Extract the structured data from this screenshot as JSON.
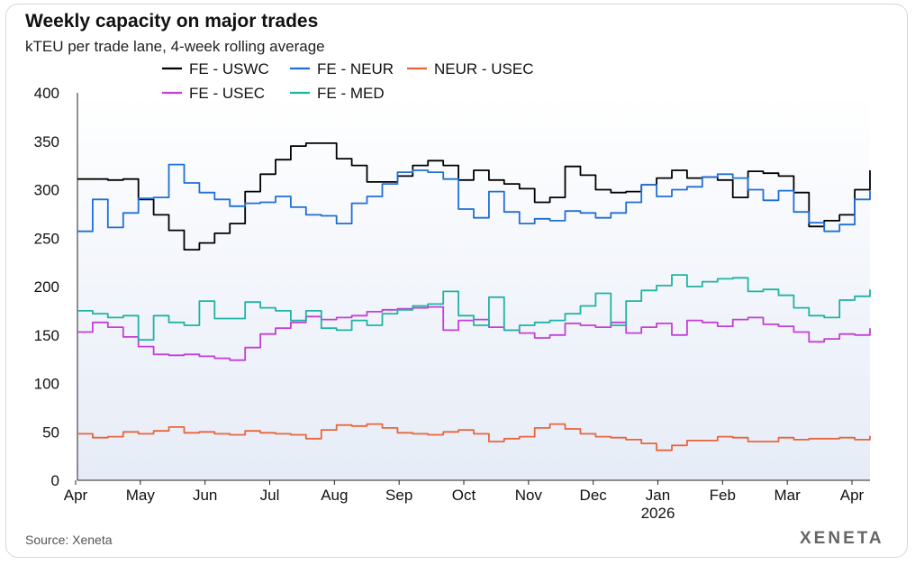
{
  "chart_data": {
    "type": "line",
    "title": "Weekly capacity on major trades",
    "subtitle": "kTEU per trade lane, 4-week rolling average",
    "source": "Source: Xeneta",
    "logo": "XENETA",
    "xlabel": "",
    "ylabel": "",
    "ylim": [
      0,
      400
    ],
    "y_ticks": [
      0,
      50,
      100,
      150,
      200,
      250,
      300,
      350,
      400
    ],
    "x_tick_labels": [
      "Apr",
      "May",
      "Jun",
      "Jul",
      "Aug",
      "Sep",
      "Oct",
      "Nov",
      "Dec",
      "Jan",
      "Feb",
      "Mar",
      "Apr"
    ],
    "x_year_label": "2026",
    "x_weeks": 53,
    "grid": false,
    "legend_position": "top-left",
    "series": [
      {
        "name": "FE - USWC",
        "color": "#000000",
        "values": [
          311,
          311,
          310,
          311,
          290,
          274,
          258,
          238,
          245,
          255,
          265,
          298,
          316,
          331,
          345,
          348,
          348,
          332,
          325,
          308,
          308,
          314,
          325,
          330,
          325,
          310,
          320,
          310,
          306,
          301,
          287,
          292,
          324,
          315,
          300,
          297,
          298,
          305,
          312,
          320,
          312,
          313,
          310,
          292,
          319,
          317,
          314,
          297,
          262,
          268,
          274,
          300,
          320
        ]
      },
      {
        "name": "FE - NEUR",
        "color": "#1f6fd6",
        "values": [
          257,
          290,
          261,
          276,
          291,
          292,
          326,
          307,
          297,
          290,
          283,
          286,
          287,
          293,
          282,
          274,
          273,
          265,
          286,
          293,
          306,
          318,
          320,
          318,
          311,
          280,
          271,
          298,
          277,
          265,
          270,
          268,
          278,
          276,
          271,
          276,
          287,
          305,
          293,
          300,
          303,
          313,
          316,
          312,
          300,
          289,
          299,
          277,
          266,
          257,
          264,
          290,
          299
        ]
      },
      {
        "name": "NEUR - USEC",
        "color": "#e8663c",
        "values": [
          48,
          44,
          45,
          50,
          48,
          51,
          55,
          49,
          50,
          48,
          47,
          51,
          49,
          48,
          47,
          43,
          52,
          57,
          56,
          58,
          54,
          49,
          48,
          47,
          50,
          52,
          48,
          40,
          43,
          45,
          54,
          58,
          53,
          48,
          45,
          44,
          42,
          38,
          31,
          36,
          41,
          41,
          45,
          44,
          40,
          40,
          44,
          42,
          43,
          43,
          44,
          42,
          46
        ]
      },
      {
        "name": "FE - USEC",
        "color": "#c23fd6",
        "values": [
          153,
          163,
          158,
          148,
          138,
          130,
          129,
          130,
          128,
          126,
          124,
          137,
          151,
          157,
          163,
          169,
          166,
          168,
          170,
          174,
          176,
          177,
          178,
          179,
          155,
          165,
          166,
          158,
          155,
          152,
          147,
          150,
          162,
          160,
          158,
          163,
          152,
          158,
          162,
          150,
          165,
          163,
          159,
          166,
          168,
          161,
          159,
          153,
          143,
          146,
          151,
          150,
          157
        ]
      },
      {
        "name": "FE - MED",
        "color": "#1fb3a3",
        "values": [
          175,
          172,
          168,
          170,
          145,
          170,
          163,
          160,
          185,
          167,
          167,
          184,
          178,
          175,
          165,
          175,
          157,
          155,
          165,
          160,
          172,
          176,
          180,
          182,
          195,
          170,
          160,
          189,
          155,
          160,
          163,
          165,
          172,
          180,
          193,
          160,
          185,
          196,
          201,
          212,
          200,
          205,
          208,
          209,
          195,
          197,
          191,
          178,
          170,
          168,
          186,
          190,
          197
        ]
      }
    ]
  }
}
